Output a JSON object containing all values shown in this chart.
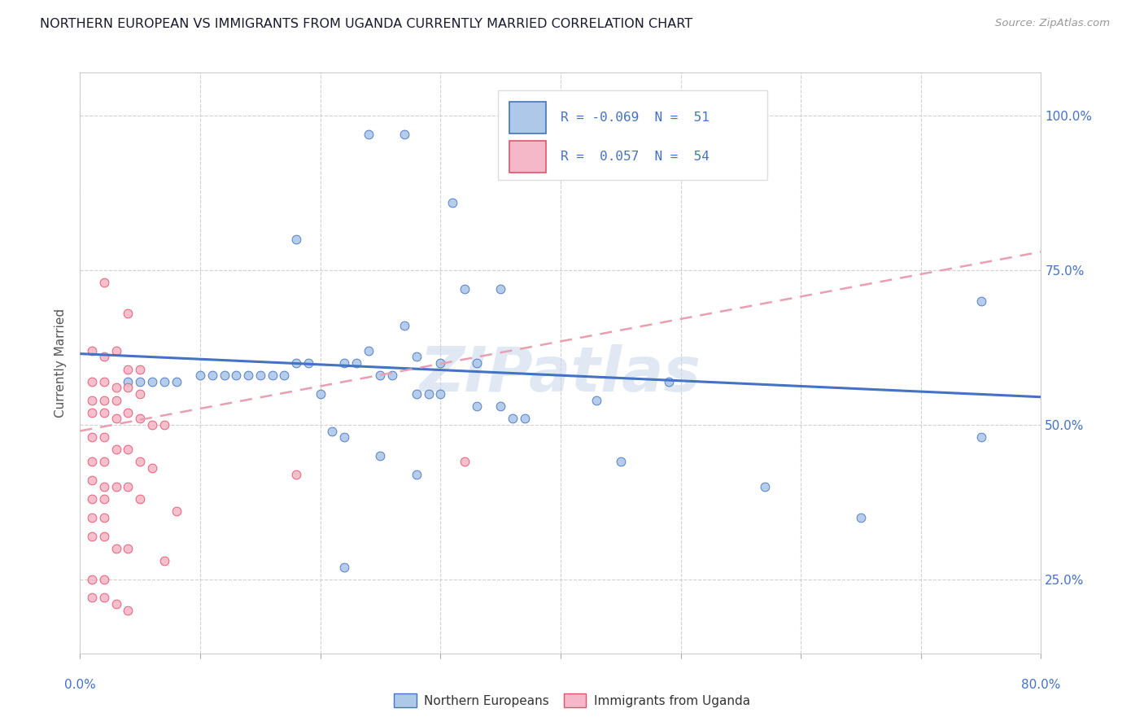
{
  "title": "NORTHERN EUROPEAN VS IMMIGRANTS FROM UGANDA CURRENTLY MARRIED CORRELATION CHART",
  "source": "Source: ZipAtlas.com",
  "ylabel": "Currently Married",
  "ytick_labels": [
    "25.0%",
    "50.0%",
    "75.0%",
    "100.0%"
  ],
  "ytick_values": [
    0.25,
    0.5,
    0.75,
    1.0
  ],
  "xlim": [
    0.0,
    0.8
  ],
  "ylim": [
    0.13,
    1.07
  ],
  "color_blue": "#adc8e8",
  "color_pink": "#f5b8c8",
  "line_color_blue": "#4472c4",
  "line_color_pink": "#e8506a",
  "line_color_pink_dash": "#e8a0b0",
  "watermark": "ZIPatlas",
  "blue_scatter": [
    [
      0.24,
      0.97
    ],
    [
      0.27,
      0.97
    ],
    [
      0.31,
      0.86
    ],
    [
      0.18,
      0.8
    ],
    [
      0.32,
      0.72
    ],
    [
      0.35,
      0.72
    ],
    [
      0.27,
      0.66
    ],
    [
      0.24,
      0.62
    ],
    [
      0.28,
      0.61
    ],
    [
      0.3,
      0.6
    ],
    [
      0.33,
      0.6
    ],
    [
      0.25,
      0.58
    ],
    [
      0.26,
      0.58
    ],
    [
      0.22,
      0.6
    ],
    [
      0.23,
      0.6
    ],
    [
      0.18,
      0.6
    ],
    [
      0.19,
      0.6
    ],
    [
      0.14,
      0.58
    ],
    [
      0.15,
      0.58
    ],
    [
      0.16,
      0.58
    ],
    [
      0.17,
      0.58
    ],
    [
      0.1,
      0.58
    ],
    [
      0.11,
      0.58
    ],
    [
      0.12,
      0.58
    ],
    [
      0.13,
      0.58
    ],
    [
      0.07,
      0.57
    ],
    [
      0.08,
      0.57
    ],
    [
      0.04,
      0.57
    ],
    [
      0.05,
      0.57
    ],
    [
      0.06,
      0.57
    ],
    [
      0.2,
      0.55
    ],
    [
      0.28,
      0.55
    ],
    [
      0.29,
      0.55
    ],
    [
      0.3,
      0.55
    ],
    [
      0.33,
      0.53
    ],
    [
      0.35,
      0.53
    ],
    [
      0.36,
      0.51
    ],
    [
      0.37,
      0.51
    ],
    [
      0.43,
      0.54
    ],
    [
      0.49,
      0.57
    ],
    [
      0.21,
      0.49
    ],
    [
      0.22,
      0.48
    ],
    [
      0.25,
      0.45
    ],
    [
      0.28,
      0.42
    ],
    [
      0.45,
      0.44
    ],
    [
      0.57,
      0.4
    ],
    [
      0.65,
      0.35
    ],
    [
      0.75,
      0.7
    ],
    [
      0.22,
      0.27
    ],
    [
      0.75,
      0.48
    ]
  ],
  "pink_scatter": [
    [
      0.02,
      0.73
    ],
    [
      0.04,
      0.68
    ],
    [
      0.01,
      0.62
    ],
    [
      0.02,
      0.61
    ],
    [
      0.03,
      0.62
    ],
    [
      0.04,
      0.59
    ],
    [
      0.05,
      0.59
    ],
    [
      0.01,
      0.57
    ],
    [
      0.02,
      0.57
    ],
    [
      0.03,
      0.56
    ],
    [
      0.04,
      0.56
    ],
    [
      0.05,
      0.55
    ],
    [
      0.01,
      0.54
    ],
    [
      0.02,
      0.54
    ],
    [
      0.03,
      0.54
    ],
    [
      0.01,
      0.52
    ],
    [
      0.02,
      0.52
    ],
    [
      0.03,
      0.51
    ],
    [
      0.04,
      0.52
    ],
    [
      0.05,
      0.51
    ],
    [
      0.06,
      0.5
    ],
    [
      0.07,
      0.5
    ],
    [
      0.01,
      0.48
    ],
    [
      0.02,
      0.48
    ],
    [
      0.03,
      0.46
    ],
    [
      0.04,
      0.46
    ],
    [
      0.01,
      0.44
    ],
    [
      0.02,
      0.44
    ],
    [
      0.05,
      0.44
    ],
    [
      0.06,
      0.43
    ],
    [
      0.01,
      0.41
    ],
    [
      0.02,
      0.4
    ],
    [
      0.03,
      0.4
    ],
    [
      0.04,
      0.4
    ],
    [
      0.01,
      0.38
    ],
    [
      0.02,
      0.38
    ],
    [
      0.05,
      0.38
    ],
    [
      0.01,
      0.35
    ],
    [
      0.02,
      0.35
    ],
    [
      0.08,
      0.36
    ],
    [
      0.01,
      0.32
    ],
    [
      0.02,
      0.32
    ],
    [
      0.03,
      0.3
    ],
    [
      0.04,
      0.3
    ],
    [
      0.07,
      0.28
    ],
    [
      0.18,
      0.42
    ],
    [
      0.32,
      0.44
    ],
    [
      0.01,
      0.25
    ],
    [
      0.02,
      0.25
    ],
    [
      0.01,
      0.22
    ],
    [
      0.02,
      0.22
    ],
    [
      0.03,
      0.21
    ],
    [
      0.04,
      0.2
    ]
  ],
  "blue_line_x": [
    0.0,
    0.8
  ],
  "blue_line_y_start": 0.615,
  "blue_line_y_end": 0.545,
  "pink_dash_line_x": [
    0.0,
    0.8
  ],
  "pink_dash_line_y_start": 0.49,
  "pink_dash_line_y_end": 0.78
}
